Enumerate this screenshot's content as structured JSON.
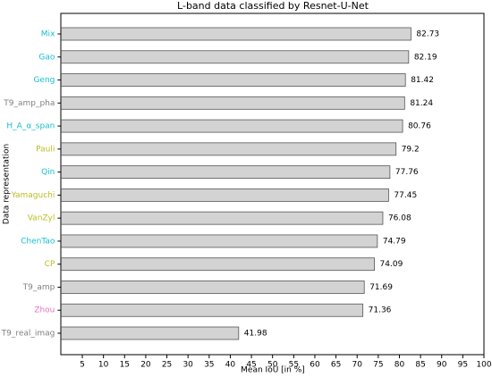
{
  "chart_data": {
    "type": "barh",
    "title": "L-band data classified by Resnet-U-Net",
    "x_label": "Mean IoU [in %]",
    "y_label": "Data representation",
    "categories": [
      "Mix",
      "Gao",
      "Geng",
      "T9_amp_pha",
      "H_A_α_span",
      "Pauli",
      "Qin",
      "Yamaguchi",
      "VanZyl",
      "ChenTao",
      "CP",
      "T9_amp",
      "Zhou",
      "T9_real_imag"
    ],
    "category_colors": [
      "#17becf",
      "#17becf",
      "#17becf",
      "#7f7f7f",
      "#17becf",
      "#bcbd22",
      "#17becf",
      "#bcbd22",
      "#bcbd22",
      "#17becf",
      "#bcbd22",
      "#7f7f7f",
      "#e377c2",
      "#7f7f7f"
    ],
    "values": [
      82.73,
      82.19,
      81.42,
      81.24,
      80.76,
      79.2,
      77.76,
      77.45,
      76.08,
      74.79,
      74.09,
      71.69,
      71.36,
      41.98
    ],
    "color": "#d3d3d3",
    "xlim": [
      0,
      100
    ],
    "xticks": [
      5,
      10,
      15,
      20,
      25,
      30,
      35,
      40,
      45,
      50,
      55,
      60,
      65,
      70,
      75,
      80,
      85,
      90,
      95,
      100
    ]
  }
}
